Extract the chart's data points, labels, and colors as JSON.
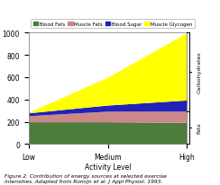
{
  "x": [
    0,
    1,
    2
  ],
  "x_labels": [
    "Low",
    "Medium",
    "High"
  ],
  "blood_fats": [
    200,
    200,
    195
  ],
  "muscle_fats": [
    55,
    95,
    100
  ],
  "blood_sugar": [
    25,
    55,
    100
  ],
  "muscle_glycogen": [
    5,
    250,
    605
  ],
  "colors": {
    "blood_fats": "#4e7c3c",
    "muscle_fats": "#cc8888",
    "blood_sugar": "#2222bb",
    "muscle_glycogen": "#ffff00"
  },
  "legend_labels": [
    "Blood Fats",
    "Muscle Fats",
    "Blood Sugar",
    "Muscle Glycogen"
  ],
  "xlabel": "Activity Level",
  "ylim": [
    0,
    1000
  ],
  "yticks": [
    0,
    200,
    400,
    600,
    800,
    1000
  ],
  "caption": "Figure 2. Contribution of energy sources at selected exercise\nintensities. Adapted from Romijn et al. J Appl Physiol. 1993.",
  "annot_carb": "Carbohydrates",
  "annot_fats": "Fats",
  "bg_color": "#ffffff",
  "plot_bg": "#ffffff"
}
